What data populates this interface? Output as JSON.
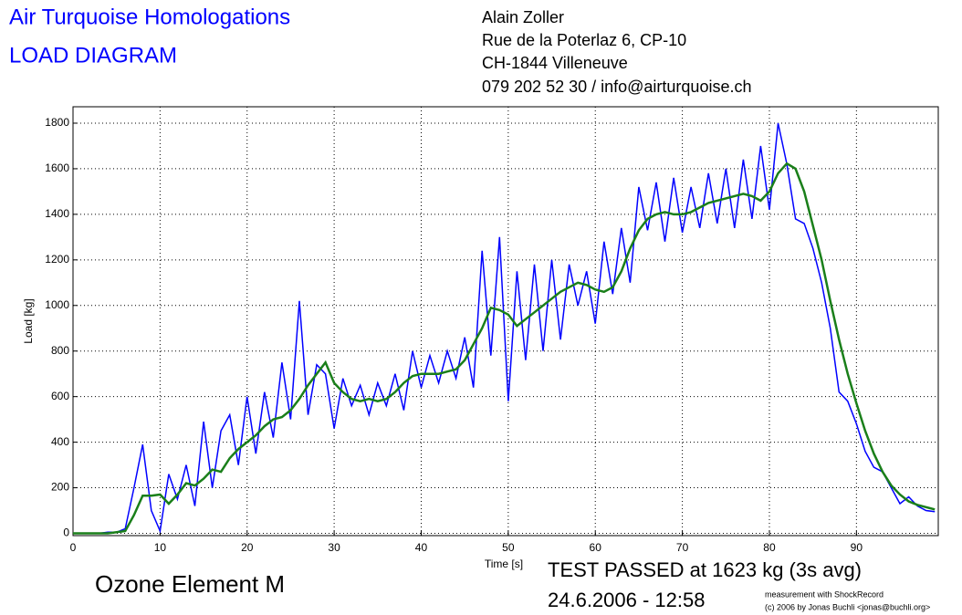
{
  "header": {
    "title": [
      "Air Turquoise Homologations",
      "LOAD DIAGRAM"
    ],
    "address": [
      "Alain Zoller",
      "Rue de la Poterlaz 6, CP-10",
      "CH-1844 Villeneuve",
      "079 202 52 30 / info@airturquoise.ch"
    ]
  },
  "footer": {
    "product": "Ozone Element M",
    "result": "TEST PASSED at 1623 kg (3s avg)",
    "date": "24.6.2006 - 12:58",
    "credit": [
      "measurement with ShockRecord",
      "(c) 2006 by Jonas Buchli <jonas@buchli.org>"
    ]
  },
  "chart_data": {
    "type": "line",
    "x_label": "Time [s]",
    "y_label": "Load [kg]",
    "xlim": [
      0,
      99.4
    ],
    "ylim": [
      -10,
      1872
    ],
    "xticks": [
      0,
      10,
      20,
      30,
      40,
      50,
      60,
      70,
      80,
      90
    ],
    "yticks": [
      0,
      200,
      400,
      600,
      800,
      1000,
      1200,
      1400,
      1600,
      1800
    ],
    "grid": true,
    "x": [
      0,
      1,
      2,
      3,
      4,
      5,
      6,
      7,
      8,
      9,
      10,
      11,
      12,
      13,
      14,
      15,
      16,
      17,
      18,
      19,
      20,
      21,
      22,
      23,
      24,
      25,
      26,
      27,
      28,
      29,
      30,
      31,
      32,
      33,
      34,
      35,
      36,
      37,
      38,
      39,
      40,
      41,
      42,
      43,
      44,
      45,
      46,
      47,
      48,
      49,
      50,
      51,
      52,
      53,
      54,
      55,
      56,
      57,
      58,
      59,
      60,
      61,
      62,
      63,
      64,
      65,
      66,
      67,
      68,
      69,
      70,
      71,
      72,
      73,
      74,
      75,
      76,
      77,
      78,
      79,
      80,
      81,
      82,
      83,
      84,
      85,
      86,
      87,
      88,
      89,
      90,
      91,
      92,
      93,
      94,
      95,
      96,
      97,
      98,
      99
    ],
    "series": [
      {
        "color": "#0000ff",
        "width": 1.5,
        "values": [
          0,
          0,
          0,
          0,
          5,
          5,
          20,
          200,
          390,
          100,
          10,
          260,
          150,
          300,
          120,
          490,
          200,
          450,
          520,
          300,
          600,
          350,
          620,
          420,
          750,
          500,
          1020,
          520,
          740,
          700,
          460,
          680,
          560,
          650,
          520,
          660,
          560,
          700,
          540,
          800,
          640,
          780,
          660,
          800,
          680,
          860,
          640,
          1240,
          780,
          1300,
          580,
          1150,
          760,
          1180,
          800,
          1200,
          850,
          1180,
          1000,
          1150,
          920,
          1280,
          1050,
          1340,
          1100,
          1520,
          1330,
          1540,
          1280,
          1560,
          1320,
          1520,
          1340,
          1580,
          1360,
          1600,
          1340,
          1640,
          1380,
          1700,
          1420,
          1800,
          1620,
          1380,
          1360,
          1250,
          1100,
          900,
          620,
          580,
          480,
          360,
          290,
          270,
          200,
          130,
          160,
          120,
          100,
          95
        ]
      },
      {
        "color": "#1a7f1a",
        "width": 2.5,
        "values": [
          0,
          0,
          0,
          0,
          0,
          5,
          10,
          80,
          165,
          165,
          170,
          130,
          170,
          220,
          210,
          240,
          280,
          270,
          330,
          370,
          400,
          430,
          470,
          500,
          510,
          540,
          590,
          650,
          700,
          750,
          660,
          620,
          590,
          580,
          590,
          580,
          590,
          620,
          660,
          690,
          700,
          700,
          700,
          710,
          720,
          760,
          830,
          900,
          990,
          980,
          960,
          910,
          940,
          970,
          1000,
          1030,
          1060,
          1080,
          1100,
          1090,
          1070,
          1060,
          1080,
          1150,
          1250,
          1330,
          1380,
          1400,
          1410,
          1400,
          1400,
          1410,
          1430,
          1450,
          1460,
          1470,
          1480,
          1490,
          1480,
          1460,
          1500,
          1580,
          1623,
          1600,
          1500,
          1350,
          1200,
          1020,
          850,
          700,
          570,
          450,
          350,
          270,
          210,
          170,
          140,
          125,
          115,
          105
        ]
      }
    ]
  }
}
